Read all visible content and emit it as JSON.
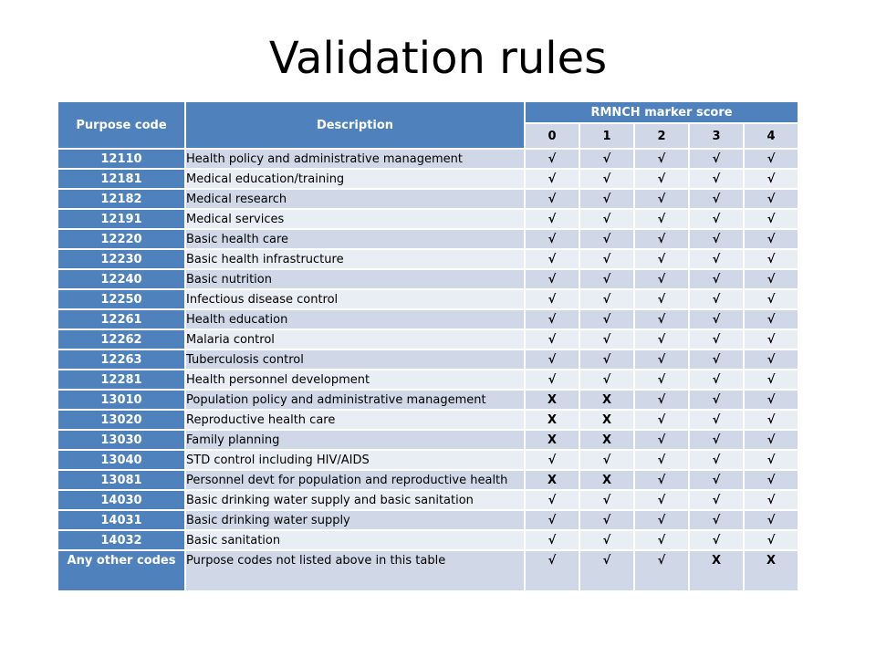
{
  "title": "Validation rules",
  "table": {
    "headers": {
      "purpose_code": "Purpose code",
      "description": "Description",
      "marker_score": "RMNCH marker score",
      "scores": [
        "0",
        "1",
        "2",
        "3",
        "4"
      ]
    },
    "rows": [
      {
        "code": "12110",
        "description": "Health policy and administrative management",
        "marks": [
          "√",
          "√",
          "√",
          "√",
          "√"
        ]
      },
      {
        "code": "12181",
        "description": "Medical education/training",
        "marks": [
          "√",
          "√",
          "√",
          "√",
          "√"
        ]
      },
      {
        "code": "12182",
        "description": "Medical research",
        "marks": [
          "√",
          "√",
          "√",
          "√",
          "√"
        ]
      },
      {
        "code": "12191",
        "description": "Medical services",
        "marks": [
          "√",
          "√",
          "√",
          "√",
          "√"
        ]
      },
      {
        "code": "12220",
        "description": "Basic health care",
        "marks": [
          "√",
          "√",
          "√",
          "√",
          "√"
        ]
      },
      {
        "code": "12230",
        "description": "Basic health infrastructure",
        "marks": [
          "√",
          "√",
          "√",
          "√",
          "√"
        ]
      },
      {
        "code": "12240",
        "description": "Basic nutrition",
        "marks": [
          "√",
          "√",
          "√",
          "√",
          "√"
        ]
      },
      {
        "code": "12250",
        "description": "Infectious disease control",
        "marks": [
          "√",
          "√",
          "√",
          "√",
          "√"
        ]
      },
      {
        "code": "12261",
        "description": "Health education",
        "marks": [
          "√",
          "√",
          "√",
          "√",
          "√"
        ]
      },
      {
        "code": "12262",
        "description": "Malaria control",
        "marks": [
          "√",
          "√",
          "√",
          "√",
          "√"
        ]
      },
      {
        "code": "12263",
        "description": "Tuberculosis control",
        "marks": [
          "√",
          "√",
          "√",
          "√",
          "√"
        ]
      },
      {
        "code": "12281",
        "description": "Health personnel development",
        "marks": [
          "√",
          "√",
          "√",
          "√",
          "√"
        ]
      },
      {
        "code": "13010",
        "description": "Population policy and administrative management",
        "marks": [
          "X",
          "X",
          "√",
          "√",
          "√"
        ]
      },
      {
        "code": "13020",
        "description": "Reproductive health care",
        "marks": [
          "X",
          "X",
          "√",
          "√",
          "√"
        ]
      },
      {
        "code": "13030",
        "description": "Family planning",
        "marks": [
          "X",
          "X",
          "√",
          "√",
          "√"
        ]
      },
      {
        "code": "13040",
        "description": "STD control including HIV/AIDS",
        "marks": [
          "√",
          "√",
          "√",
          "√",
          "√"
        ]
      },
      {
        "code": "13081",
        "description": "Personnel devt for population and reproductive health",
        "marks": [
          "X",
          "X",
          "√",
          "√",
          "√"
        ]
      },
      {
        "code": "14030",
        "description": "Basic drinking water supply and basic sanitation",
        "marks": [
          "√",
          "√",
          "√",
          "√",
          "√"
        ]
      },
      {
        "code": "14031",
        "description": "Basic drinking water supply",
        "marks": [
          "√",
          "√",
          "√",
          "√",
          "√"
        ]
      },
      {
        "code": "14032",
        "description": "Basic sanitation",
        "marks": [
          "√",
          "√",
          "√",
          "√",
          "√"
        ]
      },
      {
        "code": "Any other codes",
        "description": "Purpose codes not listed above in this table",
        "marks": [
          "√",
          "√",
          "√",
          "X",
          "X"
        ]
      }
    ]
  }
}
